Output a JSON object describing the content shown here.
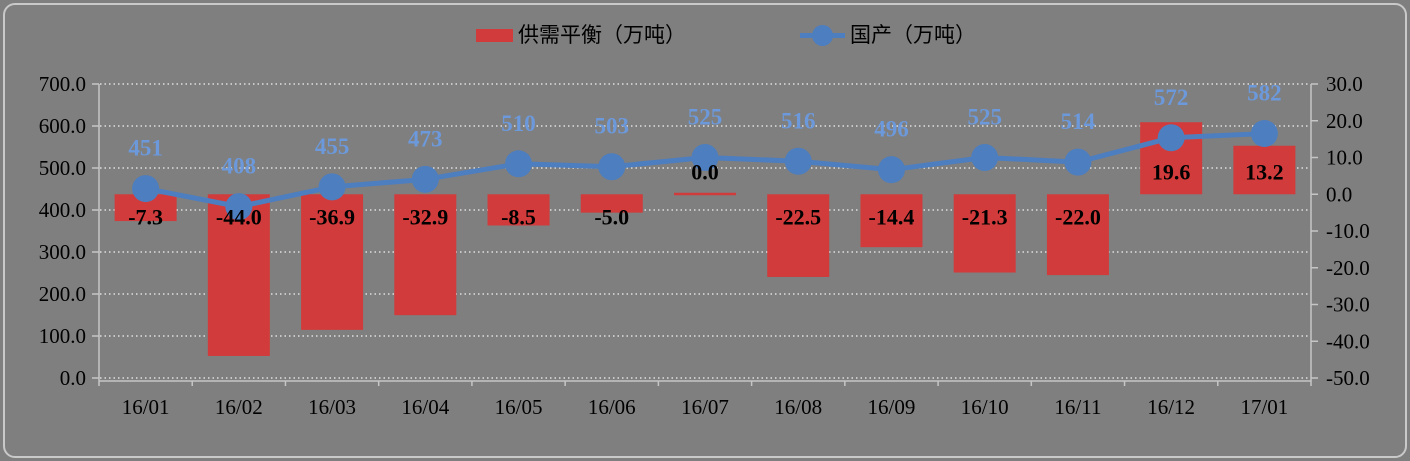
{
  "legend": {
    "items": [
      {
        "label": "供需平衡（万吨）",
        "type": "bar"
      },
      {
        "label": "国产（万吨）",
        "type": "line"
      }
    ]
  },
  "chart_data": {
    "type": "combo-bar-line",
    "title": "",
    "categories": [
      "16/01",
      "16/02",
      "16/03",
      "16/04",
      "16/05",
      "16/06",
      "16/07",
      "16/08",
      "16/09",
      "16/10",
      "16/11",
      "16/12",
      "17/01"
    ],
    "series": [
      {
        "name": "供需平衡（万吨）",
        "type": "bar",
        "axis": "right",
        "values": [
          -7.3,
          -44.0,
          -36.9,
          -32.9,
          -8.5,
          -5.0,
          0.0,
          -22.5,
          -14.4,
          -21.3,
          -22.0,
          19.6,
          13.2
        ],
        "data_labels": [
          "-7.3",
          "-44.0",
          "-36.9",
          "-32.9",
          "-8.5",
          "-5.0",
          "0.0",
          "-22.5",
          "-14.4",
          "-21.3",
          "-22.0",
          "19.6",
          "13.2"
        ]
      },
      {
        "name": "国产（万吨）",
        "type": "line",
        "axis": "left",
        "values": [
          451,
          408,
          455,
          473,
          510,
          503,
          525,
          516,
          496,
          525,
          514,
          572,
          582
        ],
        "data_labels": [
          "451",
          "408",
          "455",
          "473",
          "510",
          "503",
          "525",
          "516",
          "496",
          "525",
          "514",
          "572",
          "582"
        ]
      }
    ],
    "left_axis": {
      "min": 0,
      "max": 700,
      "step": 100,
      "tick_labels": [
        "700.0",
        "600.0",
        "500.0",
        "400.0",
        "300.0",
        "200.0",
        "100.0",
        "0.0"
      ]
    },
    "right_axis": {
      "min": -50,
      "max": 30,
      "step": 10,
      "tick_labels": [
        "30.0",
        "20.0",
        "10.0",
        "0.0",
        "-10.0",
        "-20.0",
        "-30.0",
        "-40.0",
        "-50.0"
      ]
    },
    "grid": "dotted-horizontal",
    "legend_position": "top"
  },
  "colors": {
    "background": "#7F7F7F",
    "card_border": "#C9C9C9",
    "gridline": "#F2F2F2",
    "axis_line": "#C6C6C6",
    "bar": "#D23B3B",
    "line": "#4D7EBF",
    "marker": "#4D7EBF",
    "bar_label": "#000000",
    "point_label": "#6C99DB",
    "tick_label": "#000000"
  }
}
